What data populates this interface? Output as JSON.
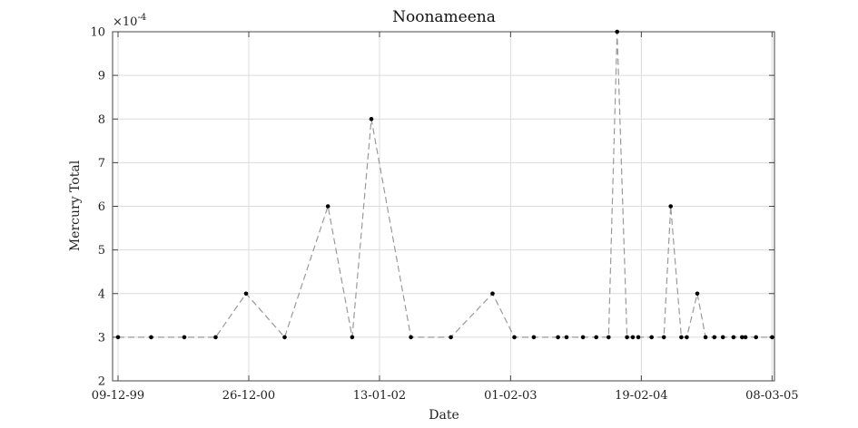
{
  "chart_data": {
    "type": "line",
    "title": "Noonameena",
    "xlabel": "Date",
    "ylabel": "Mercury Total",
    "y_exponent_label": "×10",
    "y_exponent_power": "-4",
    "ylim": [
      2,
      10
    ],
    "yticks": [
      2,
      3,
      4,
      5,
      6,
      7,
      8,
      9,
      10
    ],
    "xlim": [
      "1999-11-23",
      "2005-03-15"
    ],
    "xticks": [
      "1999-12-09",
      "2000-12-26",
      "2002-01-13",
      "2003-02-01",
      "2004-02-19",
      "2005-03-08"
    ],
    "xtick_labels": [
      "09-12-99",
      "26-12-00",
      "13-01-02",
      "01-02-03",
      "19-02-04",
      "08-03-05"
    ],
    "grid": true,
    "line_style": "dashed",
    "marker": "dot",
    "series": [
      {
        "x": [
          "1999-12-09",
          "2000-03-15",
          "2000-06-20",
          "2000-09-20",
          "2000-12-18",
          "2001-04-10",
          "2001-08-15",
          "2001-10-25",
          "2001-12-20",
          "2002-04-15",
          "2002-08-10",
          "2002-12-10",
          "2003-02-12",
          "2003-04-10",
          "2003-06-20",
          "2003-07-15",
          "2003-09-01",
          "2003-10-10",
          "2003-11-15",
          "2003-12-10",
          "2004-01-08",
          "2004-01-25",
          "2004-02-10",
          "2004-03-20",
          "2004-04-25",
          "2004-05-15",
          "2004-06-15",
          "2004-07-01",
          "2004-08-01",
          "2004-08-25",
          "2004-09-20",
          "2004-10-15",
          "2004-11-15",
          "2004-12-10",
          "2004-12-20",
          "2005-01-20",
          "2005-03-08"
        ],
        "values": [
          3,
          3,
          3,
          3,
          4,
          3,
          6,
          3,
          8,
          3,
          3,
          4,
          3,
          3,
          3,
          3,
          3,
          3,
          3,
          10,
          3,
          3,
          3,
          3,
          3,
          6,
          3,
          3,
          4,
          3,
          3,
          3,
          3,
          3,
          3,
          3,
          3
        ]
      }
    ]
  }
}
